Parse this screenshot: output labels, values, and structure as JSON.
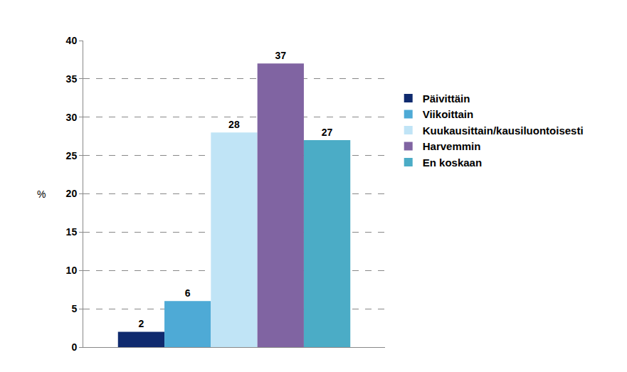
{
  "chart_data": {
    "type": "bar",
    "ylabel": "%",
    "categories": [
      null
    ],
    "series": [
      {
        "name": "Päivittäin",
        "color": "#0f2a6e",
        "values": [
          2
        ]
      },
      {
        "name": "Viikoittain",
        "color": "#4eaad6",
        "values": [
          6
        ]
      },
      {
        "name": "Kuukausittain/kausiluontoisesti",
        "color": "#c0e4f6",
        "values": [
          28
        ]
      },
      {
        "name": "Harvemmin",
        "color": "#8064a2",
        "values": [
          37
        ]
      },
      {
        "name": "En koskaan",
        "color": "#4bacc6",
        "values": [
          27
        ]
      }
    ],
    "ylim": [
      0,
      40
    ],
    "yticks": [
      0,
      5,
      10,
      15,
      20,
      25,
      30,
      35,
      40
    ],
    "grid": true,
    "legend": "right",
    "data_labels": true,
    "tick_labels": "y"
  }
}
